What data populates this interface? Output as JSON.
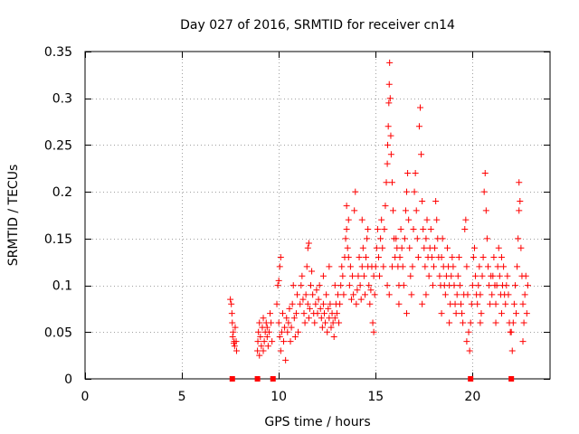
{
  "chart_data": {
    "type": "scatter",
    "title": "Day 027 of 2016, SRMTID for receiver cn14",
    "xlabel": "GPS time / hours",
    "ylabel": "SRMTID / TECUs",
    "xlim": [
      0,
      24
    ],
    "ylim": [
      0,
      0.35
    ],
    "grid": true,
    "marker": "plus",
    "color": "#ff0000",
    "x_ticks": [
      0,
      5,
      10,
      15,
      20
    ],
    "x_tick_labels": [
      "0",
      "5",
      "10",
      "15",
      "20"
    ],
    "y_ticks": [
      0,
      0.05,
      0.1,
      0.15,
      0.2,
      0.25,
      0.3,
      0.35
    ],
    "y_tick_labels": [
      "0",
      "0.05",
      "0.1",
      "0.15",
      "0.2",
      "0.25",
      "0.3",
      "0.35"
    ],
    "zero_points_x": [
      7.6,
      8.9,
      9.7,
      19.9,
      22.0
    ],
    "points": [
      [
        7.5,
        0.085
      ],
      [
        7.55,
        0.08
      ],
      [
        7.6,
        0.06
      ],
      [
        7.62,
        0.045
      ],
      [
        7.65,
        0.05
      ],
      [
        7.7,
        0.04
      ],
      [
        7.72,
        0.035
      ],
      [
        7.75,
        0.055
      ],
      [
        7.8,
        0.04
      ],
      [
        7.82,
        0.03
      ],
      [
        7.58,
        0.07
      ],
      [
        7.68,
        0.038
      ],
      [
        8.9,
        0.03
      ],
      [
        8.92,
        0.04
      ],
      [
        8.95,
        0.05
      ],
      [
        9.0,
        0.06
      ],
      [
        9.05,
        0.045
      ],
      [
        9.1,
        0.035
      ],
      [
        9.15,
        0.055
      ],
      [
        9.2,
        0.065
      ],
      [
        9.25,
        0.04
      ],
      [
        9.3,
        0.05
      ],
      [
        9.35,
        0.06
      ],
      [
        9.4,
        0.045
      ],
      [
        9.45,
        0.035
      ],
      [
        9.5,
        0.05
      ],
      [
        9.55,
        0.07
      ],
      [
        9.6,
        0.06
      ],
      [
        9.65,
        0.04
      ],
      [
        9.0,
        0.025
      ],
      [
        9.2,
        0.03
      ],
      [
        9.4,
        0.055
      ],
      [
        9.9,
        0.08
      ],
      [
        9.95,
        0.1
      ],
      [
        10.0,
        0.06
      ],
      [
        10.05,
        0.045
      ],
      [
        10.1,
        0.03
      ],
      [
        10.15,
        0.05
      ],
      [
        10.2,
        0.07
      ],
      [
        10.25,
        0.04
      ],
      [
        10.3,
        0.055
      ],
      [
        10.35,
        0.02
      ],
      [
        10.4,
        0.065
      ],
      [
        10.45,
        0.05
      ],
      [
        10.5,
        0.06
      ],
      [
        10.55,
        0.075
      ],
      [
        10.6,
        0.04
      ],
      [
        10.65,
        0.055
      ],
      [
        10.7,
        0.08
      ],
      [
        10.75,
        0.1
      ],
      [
        10.8,
        0.065
      ],
      [
        10.85,
        0.045
      ],
      [
        10.9,
        0.07
      ],
      [
        10.95,
        0.09
      ],
      [
        10.05,
        0.12
      ],
      [
        10.1,
        0.13
      ],
      [
        10.0,
        0.105
      ],
      [
        11.0,
        0.05
      ],
      [
        11.1,
        0.08
      ],
      [
        11.15,
        0.1
      ],
      [
        11.2,
        0.11
      ],
      [
        11.25,
        0.085
      ],
      [
        11.3,
        0.07
      ],
      [
        11.35,
        0.06
      ],
      [
        11.4,
        0.09
      ],
      [
        11.45,
        0.12
      ],
      [
        11.5,
        0.08
      ],
      [
        11.55,
        0.065
      ],
      [
        11.6,
        0.075
      ],
      [
        11.65,
        0.1
      ],
      [
        11.7,
        0.115
      ],
      [
        11.75,
        0.09
      ],
      [
        11.8,
        0.07
      ],
      [
        11.85,
        0.06
      ],
      [
        11.9,
        0.08
      ],
      [
        11.95,
        0.095
      ],
      [
        11.5,
        0.14
      ],
      [
        11.55,
        0.145
      ],
      [
        12.0,
        0.07
      ],
      [
        12.05,
        0.085
      ],
      [
        12.1,
        0.1
      ],
      [
        12.15,
        0.075
      ],
      [
        12.2,
        0.065
      ],
      [
        12.25,
        0.055
      ],
      [
        12.3,
        0.08
      ],
      [
        12.35,
        0.07
      ],
      [
        12.4,
        0.06
      ],
      [
        12.45,
        0.09
      ],
      [
        12.5,
        0.05
      ],
      [
        12.55,
        0.075
      ],
      [
        12.6,
        0.065
      ],
      [
        12.65,
        0.08
      ],
      [
        12.7,
        0.055
      ],
      [
        12.75,
        0.07
      ],
      [
        12.8,
        0.06
      ],
      [
        12.85,
        0.045
      ],
      [
        12.9,
        0.065
      ],
      [
        12.95,
        0.08
      ],
      [
        12.3,
        0.11
      ],
      [
        12.6,
        0.12
      ],
      [
        12.9,
        0.1
      ],
      [
        13.0,
        0.07
      ],
      [
        13.05,
        0.09
      ],
      [
        13.1,
        0.06
      ],
      [
        13.15,
        0.08
      ],
      [
        13.2,
        0.1
      ],
      [
        13.25,
        0.12
      ],
      [
        13.3,
        0.11
      ],
      [
        13.35,
        0.09
      ],
      [
        13.4,
        0.13
      ],
      [
        13.45,
        0.15
      ],
      [
        13.5,
        0.16
      ],
      [
        13.55,
        0.14
      ],
      [
        13.6,
        0.13
      ],
      [
        13.65,
        0.1
      ],
      [
        13.7,
        0.12
      ],
      [
        13.75,
        0.085
      ],
      [
        13.8,
        0.11
      ],
      [
        13.85,
        0.09
      ],
      [
        13.9,
        0.18
      ],
      [
        13.95,
        0.2
      ],
      [
        13.6,
        0.17
      ],
      [
        13.5,
        0.185
      ],
      [
        14.0,
        0.08
      ],
      [
        14.05,
        0.095
      ],
      [
        14.1,
        0.11
      ],
      [
        14.15,
        0.13
      ],
      [
        14.2,
        0.1
      ],
      [
        14.25,
        0.085
      ],
      [
        14.3,
        0.12
      ],
      [
        14.35,
        0.14
      ],
      [
        14.4,
        0.11
      ],
      [
        14.45,
        0.09
      ],
      [
        14.5,
        0.13
      ],
      [
        14.55,
        0.15
      ],
      [
        14.6,
        0.12
      ],
      [
        14.65,
        0.1
      ],
      [
        14.7,
        0.08
      ],
      [
        14.75,
        0.095
      ],
      [
        14.8,
        0.12
      ],
      [
        14.85,
        0.06
      ],
      [
        14.9,
        0.05
      ],
      [
        14.95,
        0.09
      ],
      [
        14.3,
        0.17
      ],
      [
        14.6,
        0.16
      ],
      [
        14.9,
        0.11
      ],
      [
        15.0,
        0.12
      ],
      [
        15.05,
        0.14
      ],
      [
        15.1,
        0.16
      ],
      [
        15.15,
        0.13
      ],
      [
        15.2,
        0.11
      ],
      [
        15.25,
        0.15
      ],
      [
        15.3,
        0.17
      ],
      [
        15.35,
        0.14
      ],
      [
        15.4,
        0.12
      ],
      [
        15.45,
        0.16
      ],
      [
        15.5,
        0.185
      ],
      [
        15.55,
        0.21
      ],
      [
        15.6,
        0.23
      ],
      [
        15.62,
        0.25
      ],
      [
        15.65,
        0.27
      ],
      [
        15.68,
        0.295
      ],
      [
        15.7,
        0.315
      ],
      [
        15.72,
        0.338
      ],
      [
        15.75,
        0.3
      ],
      [
        15.78,
        0.26
      ],
      [
        15.8,
        0.24
      ],
      [
        15.85,
        0.21
      ],
      [
        15.9,
        0.18
      ],
      [
        15.95,
        0.15
      ],
      [
        15.6,
        0.1
      ],
      [
        15.7,
        0.09
      ],
      [
        15.85,
        0.12
      ],
      [
        16.0,
        0.13
      ],
      [
        16.05,
        0.15
      ],
      [
        16.1,
        0.14
      ],
      [
        16.15,
        0.12
      ],
      [
        16.2,
        0.1
      ],
      [
        16.25,
        0.13
      ],
      [
        16.3,
        0.16
      ],
      [
        16.35,
        0.14
      ],
      [
        16.4,
        0.12
      ],
      [
        16.45,
        0.1
      ],
      [
        16.5,
        0.15
      ],
      [
        16.55,
        0.18
      ],
      [
        16.6,
        0.2
      ],
      [
        16.65,
        0.22
      ],
      [
        16.7,
        0.17
      ],
      [
        16.75,
        0.14
      ],
      [
        16.8,
        0.11
      ],
      [
        16.85,
        0.09
      ],
      [
        16.9,
        0.12
      ],
      [
        16.95,
        0.16
      ],
      [
        16.2,
        0.08
      ],
      [
        16.6,
        0.07
      ],
      [
        17.0,
        0.2
      ],
      [
        17.05,
        0.22
      ],
      [
        17.1,
        0.18
      ],
      [
        17.15,
        0.15
      ],
      [
        17.2,
        0.13
      ],
      [
        17.25,
        0.27
      ],
      [
        17.3,
        0.29
      ],
      [
        17.35,
        0.24
      ],
      [
        17.4,
        0.19
      ],
      [
        17.45,
        0.16
      ],
      [
        17.5,
        0.14
      ],
      [
        17.55,
        0.12
      ],
      [
        17.6,
        0.15
      ],
      [
        17.65,
        0.17
      ],
      [
        17.7,
        0.13
      ],
      [
        17.75,
        0.11
      ],
      [
        17.8,
        0.14
      ],
      [
        17.85,
        0.16
      ],
      [
        17.9,
        0.13
      ],
      [
        17.95,
        0.1
      ],
      [
        17.4,
        0.08
      ],
      [
        17.6,
        0.09
      ],
      [
        18.0,
        0.12
      ],
      [
        18.05,
        0.14
      ],
      [
        18.1,
        0.19
      ],
      [
        18.15,
        0.17
      ],
      [
        18.2,
        0.15
      ],
      [
        18.25,
        0.13
      ],
      [
        18.3,
        0.11
      ],
      [
        18.35,
        0.1
      ],
      [
        18.4,
        0.13
      ],
      [
        18.45,
        0.15
      ],
      [
        18.5,
        0.12
      ],
      [
        18.55,
        0.1
      ],
      [
        18.6,
        0.09
      ],
      [
        18.65,
        0.11
      ],
      [
        18.7,
        0.14
      ],
      [
        18.75,
        0.12
      ],
      [
        18.8,
        0.1
      ],
      [
        18.85,
        0.08
      ],
      [
        18.9,
        0.11
      ],
      [
        18.95,
        0.13
      ],
      [
        18.4,
        0.07
      ],
      [
        18.8,
        0.06
      ],
      [
        19.0,
        0.12
      ],
      [
        19.05,
        0.1
      ],
      [
        19.1,
        0.08
      ],
      [
        19.15,
        0.07
      ],
      [
        19.2,
        0.09
      ],
      [
        19.25,
        0.11
      ],
      [
        19.3,
        0.13
      ],
      [
        19.35,
        0.1
      ],
      [
        19.4,
        0.08
      ],
      [
        19.45,
        0.07
      ],
      [
        19.5,
        0.06
      ],
      [
        19.55,
        0.09
      ],
      [
        19.6,
        0.16
      ],
      [
        19.65,
        0.17
      ],
      [
        19.7,
        0.12
      ],
      [
        19.75,
        0.09
      ],
      [
        19.8,
        0.05
      ],
      [
        19.85,
        0.03
      ],
      [
        19.9,
        0.06
      ],
      [
        19.95,
        0.08
      ],
      [
        19.7,
        0.04
      ],
      [
        20.0,
        0.1
      ],
      [
        20.05,
        0.13
      ],
      [
        20.1,
        0.14
      ],
      [
        20.15,
        0.11
      ],
      [
        20.2,
        0.09
      ],
      [
        20.25,
        0.08
      ],
      [
        20.3,
        0.1
      ],
      [
        20.35,
        0.12
      ],
      [
        20.4,
        0.09
      ],
      [
        20.45,
        0.07
      ],
      [
        20.5,
        0.11
      ],
      [
        20.55,
        0.13
      ],
      [
        20.6,
        0.2
      ],
      [
        20.65,
        0.22
      ],
      [
        20.7,
        0.18
      ],
      [
        20.75,
        0.15
      ],
      [
        20.8,
        0.12
      ],
      [
        20.85,
        0.1
      ],
      [
        20.9,
        0.08
      ],
      [
        20.95,
        0.11
      ],
      [
        20.4,
        0.06
      ],
      [
        21.0,
        0.09
      ],
      [
        21.05,
        0.11
      ],
      [
        21.1,
        0.13
      ],
      [
        21.15,
        0.1
      ],
      [
        21.2,
        0.08
      ],
      [
        21.25,
        0.1
      ],
      [
        21.3,
        0.12
      ],
      [
        21.35,
        0.14
      ],
      [
        21.4,
        0.11
      ],
      [
        21.45,
        0.09
      ],
      [
        21.5,
        0.07
      ],
      [
        21.55,
        0.1
      ],
      [
        21.6,
        0.12
      ],
      [
        21.65,
        0.09
      ],
      [
        21.7,
        0.08
      ],
      [
        21.75,
        0.1
      ],
      [
        21.8,
        0.11
      ],
      [
        21.85,
        0.09
      ],
      [
        21.9,
        0.06
      ],
      [
        21.95,
        0.05
      ],
      [
        21.2,
        0.06
      ],
      [
        21.5,
        0.13
      ],
      [
        22.0,
        0.05
      ],
      [
        22.05,
        0.03
      ],
      [
        22.1,
        0.06
      ],
      [
        22.15,
        0.08
      ],
      [
        22.2,
        0.1
      ],
      [
        22.25,
        0.07
      ],
      [
        22.3,
        0.12
      ],
      [
        22.35,
        0.15
      ],
      [
        22.4,
        0.18
      ],
      [
        22.45,
        0.19
      ],
      [
        22.5,
        0.14
      ],
      [
        22.55,
        0.11
      ],
      [
        22.6,
        0.08
      ],
      [
        22.65,
        0.06
      ],
      [
        22.7,
        0.09
      ],
      [
        22.75,
        0.11
      ],
      [
        22.8,
        0.07
      ],
      [
        22.85,
        0.1
      ],
      [
        22.4,
        0.21
      ],
      [
        22.6,
        0.04
      ]
    ]
  }
}
